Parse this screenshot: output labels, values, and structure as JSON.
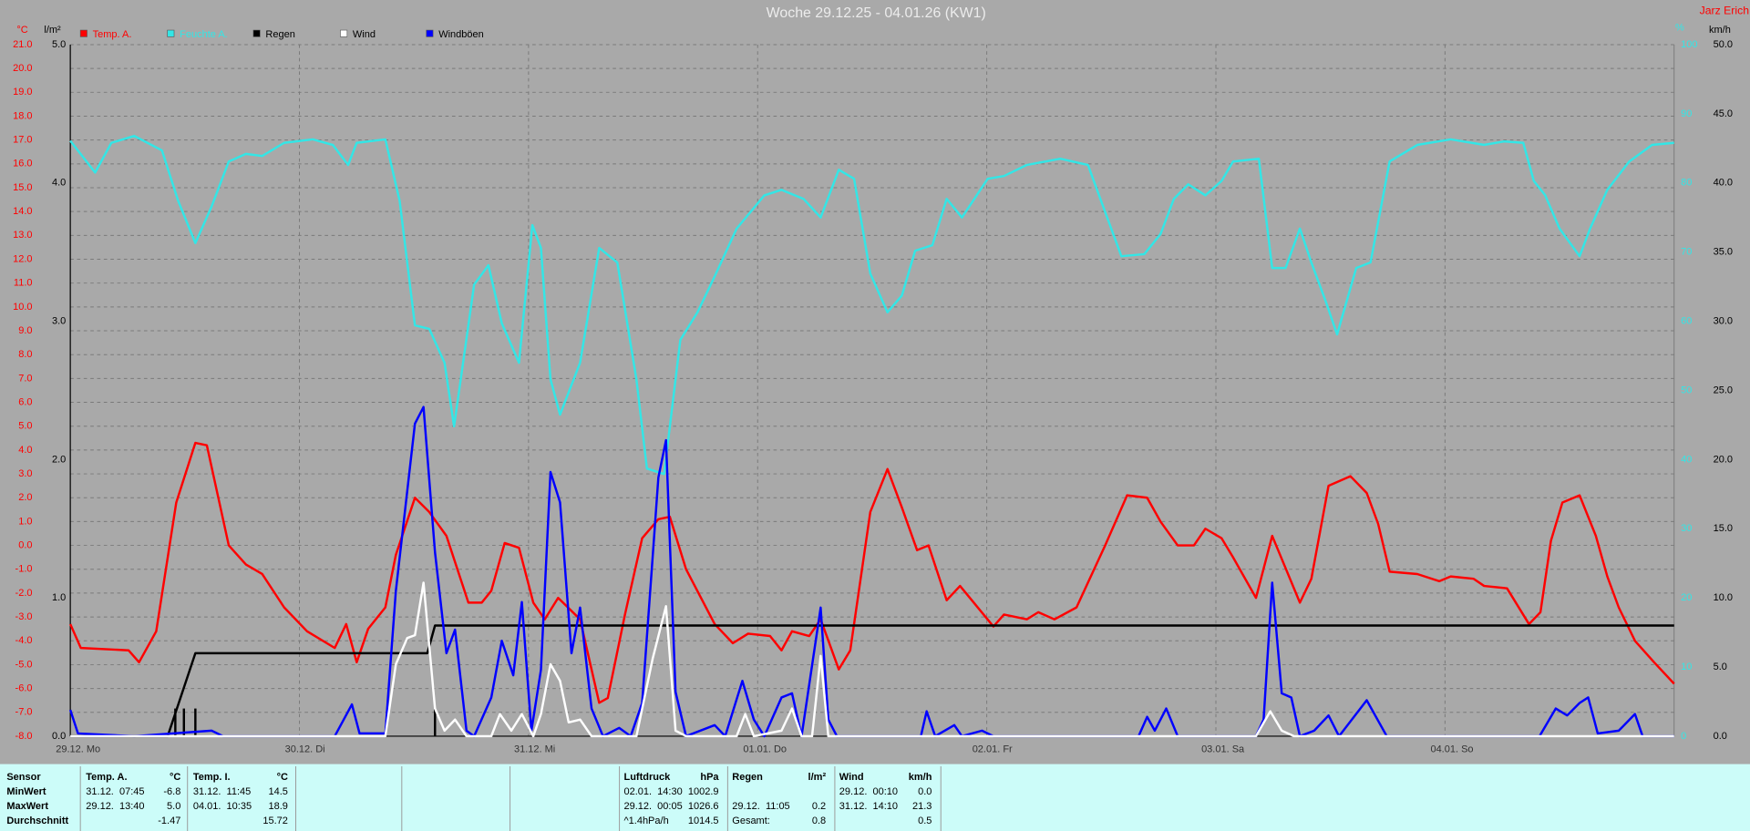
{
  "chart_data": {
    "type": "line",
    "title": "Woche 29.12.25 - 04.01.26 (KW1)",
    "author": "Jarz Erich",
    "y_unit": "°C",
    "y3_unit": "l/m²",
    "y4_unit": "%",
    "y2_unit": "km/h",
    "grid": true,
    "xlim": [
      0,
      168
    ],
    "xticks": [
      {
        "value": 0,
        "label": "29.12. Mo"
      },
      {
        "value": 24,
        "label": "30.12. Di"
      },
      {
        "value": 48,
        "label": "31.12. Mi"
      },
      {
        "value": 72,
        "label": "01.01. Do"
      },
      {
        "value": 96,
        "label": "02.01. Fr"
      },
      {
        "value": 120,
        "label": "03.01. Sa"
      },
      {
        "value": 144,
        "label": "04.01. So"
      }
    ],
    "ylim": [
      -8,
      21
    ],
    "yticks": [
      {
        "value": -8,
        "label": "-8.0"
      },
      {
        "value": -7,
        "label": "-7.0"
      },
      {
        "value": -6,
        "label": "-6.0"
      },
      {
        "value": -5,
        "label": "-5.0"
      },
      {
        "value": -4,
        "label": "-4.0"
      },
      {
        "value": -3,
        "label": "-3.0"
      },
      {
        "value": -2,
        "label": "-2.0"
      },
      {
        "value": -1,
        "label": "-1.0"
      },
      {
        "value": 0,
        "label": "0.0"
      },
      {
        "value": 1,
        "label": "1.0"
      },
      {
        "value": 2,
        "label": "2.0"
      },
      {
        "value": 3,
        "label": "3.0"
      },
      {
        "value": 4,
        "label": "4.0"
      },
      {
        "value": 5,
        "label": "5.0"
      },
      {
        "value": 6,
        "label": "6.0"
      },
      {
        "value": 7,
        "label": "7.0"
      },
      {
        "value": 8,
        "label": "8.0"
      },
      {
        "value": 9,
        "label": "9.0"
      },
      {
        "value": 10,
        "label": "10.0"
      },
      {
        "value": 11,
        "label": "11.0"
      },
      {
        "value": 12,
        "label": "12.0"
      },
      {
        "value": 13,
        "label": "13.0"
      },
      {
        "value": 14,
        "label": "14.0"
      },
      {
        "value": 15,
        "label": "15.0"
      },
      {
        "value": 16,
        "label": "16.0"
      },
      {
        "value": 17,
        "label": "17.0"
      },
      {
        "value": 18,
        "label": "18.0"
      },
      {
        "value": 19,
        "label": "19.0"
      },
      {
        "value": 20,
        "label": "20.0"
      },
      {
        "value": 21,
        "label": "21.0"
      }
    ],
    "y3lim": [
      0,
      5
    ],
    "y3ticks": [
      {
        "value": 0,
        "label": "0.0"
      },
      {
        "value": 1,
        "label": "1.0"
      },
      {
        "value": 2,
        "label": "2.0"
      },
      {
        "value": 3,
        "label": "3.0"
      },
      {
        "value": 4,
        "label": "4.0"
      },
      {
        "value": 5,
        "label": "5.0"
      }
    ],
    "y4lim": [
      0,
      100
    ],
    "y4ticks": [
      0,
      10,
      20,
      30,
      40,
      50,
      60,
      70,
      80,
      90,
      100
    ],
    "y2lim": [
      0,
      50
    ],
    "y2ticks": [
      {
        "value": 0,
        "label": "0.0"
      },
      {
        "value": 5,
        "label": "5.0"
      },
      {
        "value": 10,
        "label": "10.0"
      },
      {
        "value": 15,
        "label": "15.0"
      },
      {
        "value": 20,
        "label": "20.0"
      },
      {
        "value": 25,
        "label": "25.0"
      },
      {
        "value": 30,
        "label": "30.0"
      },
      {
        "value": 35,
        "label": "35.0"
      },
      {
        "value": 40,
        "label": "40.0"
      },
      {
        "value": 45,
        "label": "45.0"
      },
      {
        "value": 50,
        "label": "50.0"
      }
    ],
    "series": [
      {
        "name": "Temp. A.",
        "color": "#ff0000",
        "axis": "y",
        "x": [
          0,
          1.1,
          6.1,
          7.2,
          9.0,
          11.1,
          13.1,
          14.3,
          16.6,
          18.4,
          20.1,
          22.4,
          24.8,
          27.7,
          28.9,
          30.0,
          31.2,
          33.0,
          34.1,
          36.1,
          37.6,
          39.4,
          41.7,
          43.1,
          44.1,
          45.5,
          47.0,
          48.5,
          49.7,
          51.1,
          53.4,
          55.4,
          56.3,
          58.1,
          59.9,
          61.6,
          62.8,
          64.5,
          67.5,
          69.4,
          71.0,
          73.3,
          74.5,
          75.6,
          77.4,
          78.6,
          80.5,
          81.7,
          83.8,
          85.6,
          87.1,
          88.7,
          89.9,
          91.8,
          93.2,
          96.7,
          97.8,
          100.2,
          101.4,
          103.1,
          105.4,
          108.4,
          110.7,
          112.8,
          114.2,
          116.0,
          117.7,
          118.9,
          120.6,
          121.8,
          124.2,
          125.9,
          128.8,
          130.0,
          131.8,
          134.1,
          135.8,
          137.0,
          138.2,
          141.1,
          143.4,
          144.6,
          147.0,
          148.1,
          150.5,
          152.8,
          154.0,
          155.1,
          156.3,
          158.1,
          159.8,
          161.0,
          162.2,
          163.9,
          165.9,
          168.0
        ],
        "values": [
          -3.3,
          -4.3,
          -4.4,
          -4.9,
          -3.6,
          1.8,
          4.3,
          4.2,
          0.0,
          -0.8,
          -1.2,
          -2.6,
          -3.6,
          -4.3,
          -3.3,
          -4.9,
          -3.5,
          -2.6,
          -0.4,
          2.0,
          1.4,
          0.4,
          -2.4,
          -2.4,
          -1.9,
          0.1,
          -0.1,
          -2.4,
          -3.1,
          -2.2,
          -3.1,
          -6.6,
          -6.4,
          -2.9,
          0.3,
          1.1,
          1.2,
          -1.0,
          -3.3,
          -4.1,
          -3.7,
          -3.8,
          -4.4,
          -3.6,
          -3.8,
          -3.1,
          -5.2,
          -4.4,
          1.4,
          3.2,
          1.6,
          -0.2,
          0.0,
          -2.3,
          -1.7,
          -3.4,
          -2.9,
          -3.1,
          -2.8,
          -3.1,
          -2.6,
          0.0,
          2.1,
          2.0,
          1.0,
          0.0,
          0.0,
          0.7,
          0.3,
          -0.5,
          -2.2,
          0.4,
          -2.4,
          -1.4,
          2.5,
          2.9,
          2.2,
          0.9,
          -1.1,
          -1.2,
          -1.5,
          -1.3,
          -1.4,
          -1.7,
          -1.8,
          -3.3,
          -2.8,
          0.2,
          1.8,
          2.1,
          0.4,
          -1.3,
          -2.6,
          -4.0,
          -4.9,
          -5.8
        ]
      },
      {
        "name": "Feuchte A.",
        "color": "#33e6e6",
        "axis": "y4",
        "x": [
          0,
          2.6,
          4.3,
          6.7,
          9.6,
          11.3,
          13.1,
          14.8,
          16.6,
          18.4,
          20.1,
          22.4,
          25.4,
          27.5,
          29.1,
          30.0,
          33.0,
          34.5,
          36.1,
          37.6,
          39.2,
          40.2,
          42.3,
          43.8,
          45.2,
          47.0,
          48.4,
          49.3,
          50.3,
          51.3,
          53.4,
          55.4,
          57.3,
          59.3,
          60.4,
          62.2,
          63.9,
          65.7,
          67.5,
          69.8,
          72.7,
          74.5,
          76.8,
          78.6,
          80.5,
          82.1,
          83.8,
          85.6,
          87.1,
          88.5,
          90.3,
          91.8,
          93.4,
          96.1,
          97.8,
          100.2,
          103.7,
          106.6,
          108.4,
          110.1,
          112.5,
          114.2,
          115.6,
          117.1,
          118.9,
          120.6,
          121.8,
          124.5,
          125.9,
          127.3,
          128.8,
          130.0,
          131.5,
          132.7,
          134.7,
          136.2,
          138.2,
          141.1,
          144.6,
          148.1,
          150.2,
          152.2,
          153.3,
          154.5,
          156.0,
          158.1,
          159.2,
          161.0,
          163.3,
          165.7,
          168.0
        ],
        "values": [
          86.1,
          81.5,
          85.8,
          86.8,
          84.7,
          77.4,
          71.3,
          76.6,
          83.1,
          84.2,
          83.9,
          85.8,
          86.3,
          85.5,
          82.6,
          85.8,
          86.3,
          77.4,
          59.4,
          58.9,
          54.0,
          44.8,
          65.3,
          68.1,
          59.7,
          54.0,
          73.9,
          70.6,
          51.6,
          46.5,
          54.0,
          70.6,
          68.5,
          51.6,
          38.7,
          37.9,
          57.3,
          61.3,
          66.5,
          73.4,
          78.2,
          79.0,
          77.7,
          75.0,
          81.9,
          80.6,
          66.9,
          61.3,
          63.7,
          70.2,
          71.0,
          77.7,
          75.0,
          80.6,
          81.0,
          82.6,
          83.5,
          82.6,
          75.8,
          69.4,
          69.7,
          72.6,
          77.7,
          79.8,
          78.2,
          80.3,
          83.1,
          83.5,
          67.7,
          67.7,
          73.4,
          68.5,
          62.9,
          58.1,
          67.7,
          68.5,
          83.1,
          85.5,
          86.3,
          85.5,
          86.0,
          85.8,
          80.3,
          78.2,
          73.4,
          69.4,
          73.4,
          79.0,
          83.1,
          85.5,
          85.8
        ]
      },
      {
        "name": "Regen",
        "color": "#000000",
        "axis": "y3",
        "x": [
          0,
          10.2,
          13.1,
          37.4,
          38.2,
          168.0
        ],
        "values": [
          0,
          0,
          0.6,
          0.6,
          0.8,
          0.8
        ],
        "bar_x": [
          11.0,
          11.9,
          13.1,
          38.2
        ],
        "bar_values": [
          0.2,
          0.2,
          0.2,
          0.2
        ]
      },
      {
        "name": "Wind",
        "color": "#ffffff",
        "axis": "y2",
        "x": [
          0,
          33.0,
          34.1,
          35.3,
          36.1,
          37.0,
          38.2,
          39.2,
          40.3,
          41.5,
          44.1,
          45.0,
          46.2,
          47.3,
          48.5,
          49.3,
          50.3,
          51.3,
          52.2,
          53.4,
          54.6,
          59.3,
          61.0,
          62.4,
          63.4,
          64.5,
          69.8,
          70.7,
          71.6,
          74.5,
          75.6,
          76.6,
          77.7,
          78.6,
          79.4,
          124.2,
          125.7,
          126.9,
          128.2,
          168.0
        ],
        "values": [
          0,
          0,
          5.2,
          7.1,
          7.3,
          11.1,
          2.0,
          0.4,
          1.2,
          0,
          0,
          1.6,
          0.4,
          1.6,
          0,
          1.6,
          5.2,
          4.0,
          1.0,
          1.2,
          0,
          0,
          5.6,
          9.4,
          0.4,
          0,
          0,
          1.6,
          0,
          0.4,
          2.0,
          0,
          0,
          5.8,
          0,
          0,
          1.8,
          0.4,
          0,
          0
        ]
      },
      {
        "name": "Windböen",
        "color": "#0000ff",
        "axis": "y2",
        "x": [
          0,
          0.8,
          6.7,
          14.8,
          16.0,
          27.7,
          29.5,
          30.3,
          33.0,
          34.1,
          36.1,
          37.0,
          38.2,
          39.4,
          40.3,
          41.5,
          42.3,
          44.1,
          45.2,
          46.4,
          47.3,
          48.3,
          49.3,
          50.3,
          51.3,
          52.5,
          53.4,
          54.6,
          55.8,
          57.5,
          58.7,
          59.9,
          61.6,
          62.4,
          63.4,
          64.5,
          67.5,
          68.6,
          70.4,
          71.6,
          72.7,
          74.5,
          75.6,
          76.6,
          78.6,
          79.4,
          80.3,
          89.1,
          89.7,
          90.6,
          92.6,
          93.4,
          95.5,
          96.7,
          111.9,
          112.8,
          113.6,
          114.8,
          116.0,
          124.2,
          125.0,
          125.9,
          126.9,
          127.9,
          128.8,
          130.3,
          131.8,
          132.9,
          135.8,
          137.9,
          153.9,
          155.6,
          156.8,
          158.1,
          159.0,
          160.0,
          162.2,
          163.9,
          164.7,
          168.0
        ],
        "values": [
          1.9,
          0.2,
          0,
          0.4,
          0,
          0,
          2.3,
          0.2,
          0.2,
          10.5,
          22.6,
          23.8,
          13.3,
          6.0,
          7.7,
          0.4,
          0,
          2.8,
          6.9,
          4.4,
          9.7,
          0.4,
          4.8,
          19.1,
          16.9,
          6.0,
          9.3,
          2.0,
          0,
          0.6,
          0,
          2.4,
          18.7,
          21.4,
          3.2,
          0,
          0.8,
          0,
          4.0,
          1.2,
          0,
          2.8,
          3.1,
          0,
          9.3,
          1.2,
          0,
          0,
          1.8,
          0,
          0.8,
          0,
          0.4,
          0,
          0,
          1.4,
          0.4,
          2.0,
          0,
          0,
          1.2,
          11.1,
          3.1,
          2.8,
          0,
          0.4,
          1.5,
          0,
          2.6,
          0,
          0,
          2.0,
          1.5,
          2.4,
          2.8,
          0.2,
          0.4,
          1.6,
          0,
          0
        ]
      }
    ]
  },
  "table": {
    "row_labels": [
      "Sensor",
      "MinWert",
      "MaxWert",
      "Durchschnitt"
    ],
    "columns": [
      {
        "name": "Temp. A.",
        "unit": "°C",
        "min": {
          "time": "31.12.  07:45",
          "value": "-6.8"
        },
        "max": {
          "time": "29.12.  13:40",
          "value": "5.0"
        },
        "avg": {
          "value": "-1.47"
        }
      },
      {
        "name": "Temp. I.",
        "unit": "°C",
        "min": {
          "time": "31.12.  11:45",
          "value": "14.5"
        },
        "max": {
          "time": "04.01.  10:35",
          "value": "18.9"
        },
        "avg": {
          "value": "15.72"
        }
      },
      {
        "name": "Luftdruck",
        "unit": "hPa",
        "min": {
          "time": "02.01.  14:30",
          "value": "1002.9"
        },
        "max": {
          "time": "29.12.  00:05",
          "value": "1026.6"
        },
        "avg": {
          "time": "^1.4hPa/h",
          "value": "1014.5"
        }
      },
      {
        "name": "Regen",
        "unit": "l/m²",
        "max": {
          "time": "29.12.  11:05",
          "value": "0.2"
        },
        "avg": {
          "time": "Gesamt:",
          "value": "0.8"
        }
      },
      {
        "name": "Wind",
        "unit": "km/h",
        "min": {
          "time": "29.12.  00:10",
          "value": "0.0"
        },
        "max": {
          "time": "31.12.  14:10",
          "value": "21.3"
        },
        "avg": {
          "value": "0.5"
        }
      }
    ]
  }
}
